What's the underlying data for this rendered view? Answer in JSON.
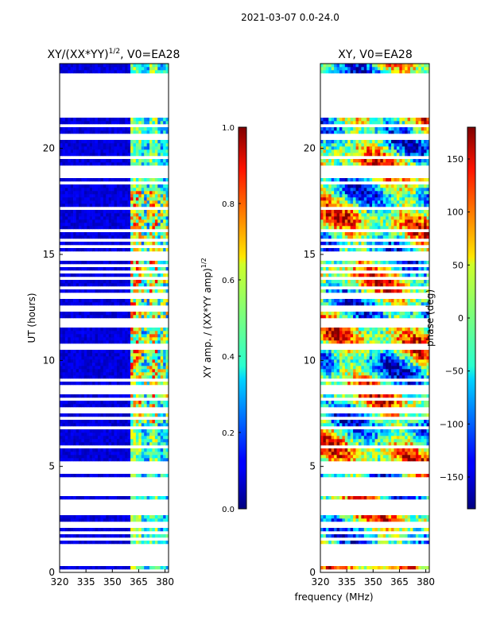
{
  "suptitle": "2021-03-07 0.0-24.0",
  "shared_xlabel": "frequency (MHz)",
  "chart_data": [
    {
      "type": "heatmap",
      "title_prefix": "XY/(XX*YY)",
      "title_exponent": "1/2",
      "title_suffix": ", V0=EA28",
      "xlabel": "",
      "ylabel": "UT (hours)",
      "xlim": [
        320,
        382
      ],
      "ylim": [
        0,
        24
      ],
      "xticks": [
        "320",
        "335",
        "350",
        "365",
        "380"
      ],
      "xtick_values": [
        320,
        335,
        350,
        365,
        380
      ],
      "yticks": [
        "0",
        "5",
        "10",
        "15",
        "20"
      ],
      "ytick_values": [
        0,
        5,
        10,
        15,
        20
      ],
      "colormap": "jet",
      "colorbar": {
        "label_prefix": "XY amp. / (XX*YY amp)",
        "label_exponent": "1/2",
        "range": [
          0.0,
          1.0
        ],
        "ticks": [
          "0.0",
          "0.2",
          "0.4",
          "0.6",
          "0.8",
          "1.0"
        ],
        "tick_values": [
          0.0,
          0.2,
          0.4,
          0.6,
          0.8,
          1.0
        ]
      },
      "bright_band_mhz": [
        360,
        381
      ],
      "data_gap_hours": [
        [
          21.5,
          23.5
        ]
      ]
    },
    {
      "type": "heatmap",
      "title": "XY, V0=EA28",
      "xlabel": "frequency (MHz)",
      "ylabel": "",
      "xlim": [
        320,
        382
      ],
      "ylim": [
        0,
        24
      ],
      "xticks": [
        "320",
        "335",
        "350",
        "365",
        "380"
      ],
      "xtick_values": [
        320,
        335,
        350,
        365,
        380
      ],
      "yticks": [
        "0",
        "5",
        "10",
        "15",
        "20"
      ],
      "ytick_values": [
        0,
        5,
        10,
        15,
        20
      ],
      "colormap": "jet",
      "colorbar": {
        "label": "phase (deg)",
        "range": [
          -180,
          180
        ],
        "ticks": [
          "−150",
          "−100",
          "−50",
          "0",
          "50",
          "100",
          "150"
        ],
        "tick_values": [
          -150,
          -100,
          -50,
          0,
          50,
          100,
          150
        ]
      },
      "data_gap_hours": [
        [
          21.5,
          23.5
        ]
      ]
    }
  ]
}
